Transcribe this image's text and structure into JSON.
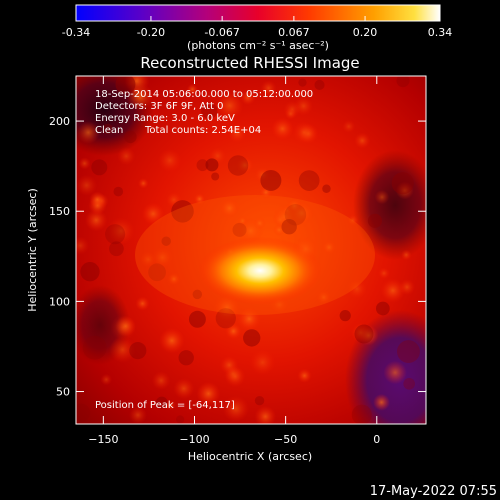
{
  "colorbar": {
    "ticks": [
      "-0.34",
      "-0.20",
      "-0.067",
      "0.067",
      "0.20",
      "0.34"
    ],
    "tick_values": [
      -0.34,
      -0.2,
      -0.067,
      0.067,
      0.2,
      0.34
    ],
    "range": [
      -0.34,
      0.34
    ],
    "units": "(photons cm⁻² s⁻¹ asec⁻²)"
  },
  "chart_data": {
    "type": "heatmap",
    "title": "Reconstructed RHESSI Image",
    "xlabel": "Heliocentric X (arcsec)",
    "ylabel": "Heliocentric Y (arcsec)",
    "xlim": [
      -165,
      27
    ],
    "ylim": [
      32,
      225
    ],
    "xticks": [
      {
        "value": -150,
        "label": "−150"
      },
      {
        "value": -100,
        "label": "−100"
      },
      {
        "value": -50,
        "label": "−50"
      },
      {
        "value": 0,
        "label": "0"
      }
    ],
    "yticks": [
      {
        "value": 50,
        "label": "50"
      },
      {
        "value": 100,
        "label": "100"
      },
      {
        "value": 150,
        "label": "150"
      },
      {
        "value": 200,
        "label": "200"
      }
    ],
    "peak": {
      "x": -64,
      "y": 117
    },
    "colormap": [
      "#0000ff",
      "#6a00b0",
      "#b8006a",
      "#ff1a00",
      "#ff6a00",
      "#ffc000",
      "#ffffff"
    ],
    "annotations": {
      "time": "18-Sep-2014 05:06:00.000 to 05:12:00.000",
      "detectors": "Detectors: 3F 6F 9F, Att 0",
      "energy": "Energy Range: 3.0 - 6.0 keV",
      "method": "Clean",
      "counts": "Total counts: 2.54E+04",
      "peak_label": "Position of Peak = [-64,117]"
    }
  },
  "footer": {
    "timestamp": "17-May-2022 07:55"
  }
}
